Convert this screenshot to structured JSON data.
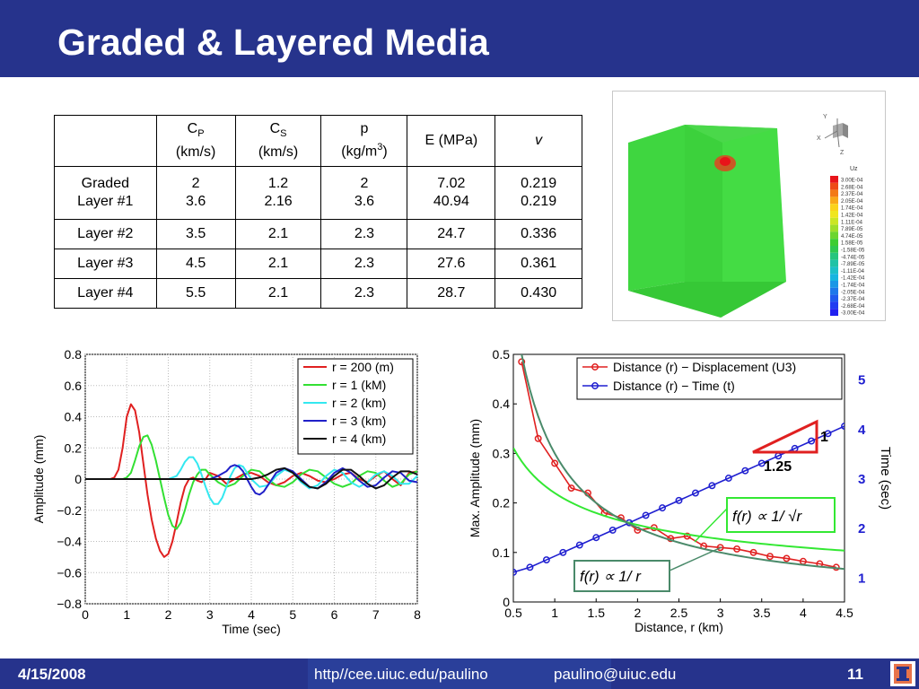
{
  "slide": {
    "title": "Graded & Layered Media",
    "footer": {
      "date": "4/15/2008",
      "url": "http//cee.uiuc.edu/paulino",
      "email": "paulino@uiuc.edu",
      "page": "11"
    },
    "colors": {
      "title_bar": "#26338c",
      "footer": "#26338c",
      "accent": "#1f1fd0"
    }
  },
  "table": {
    "headers": [
      {
        "main": "C",
        "sub": "P",
        "unit": "(km/s)"
      },
      {
        "main": "C",
        "sub": "S",
        "unit": "(km/s)"
      },
      {
        "main": "p",
        "unit_pre": "(kg/m",
        "sup": "3",
        "unit_post": ")"
      },
      {
        "main": "E (MPa)"
      },
      {
        "main": "v"
      }
    ],
    "rows": [
      {
        "label": [
          "Graded",
          "Layer #1"
        ],
        "cells": [
          [
            "2",
            "3.6"
          ],
          [
            "1.2",
            "2.16"
          ],
          [
            "2",
            "3.6"
          ],
          [
            "7.02",
            "40.94"
          ],
          [
            "0.219",
            "0.219"
          ]
        ]
      },
      {
        "label": [
          "Layer #2"
        ],
        "cells": [
          [
            "3.5"
          ],
          [
            "2.1"
          ],
          [
            "2.3"
          ],
          [
            "24.7"
          ],
          [
            "0.336"
          ]
        ]
      },
      {
        "label": [
          "Layer #3"
        ],
        "cells": [
          [
            "4.5"
          ],
          [
            "2.1"
          ],
          [
            "2.3"
          ],
          [
            "27.6"
          ],
          [
            "0.361"
          ]
        ]
      },
      {
        "label": [
          "Layer #4"
        ],
        "cells": [
          [
            "5.5"
          ],
          [
            "2.1"
          ],
          [
            "2.3"
          ],
          [
            "28.7"
          ],
          [
            "0.430"
          ]
        ]
      }
    ]
  },
  "simulation": {
    "triad": {
      "y": "Y",
      "x": "X",
      "z": "Z"
    },
    "legend_title": "Uz",
    "legend_values": [
      "3.00E-04",
      "2.68E-04",
      "2.37E-04",
      "2.05E-04",
      "1.74E-04",
      "1.42E-04",
      "1.11E-04",
      "7.89E-05",
      "4.74E-05",
      "1.58E-05",
      "-1.58E-05",
      "-4.74E-05",
      "-7.89E-05",
      "-1.11E-04",
      "-1.42E-04",
      "-1.74E-04",
      "-2.05E-04",
      "-2.37E-04",
      "-2.68E-04",
      "-3.00E-04"
    ],
    "legend_colors": [
      "#e8141a",
      "#ee4a17",
      "#f37a16",
      "#f9a918",
      "#fbd31b",
      "#f0e61e",
      "#cbe624",
      "#9fde2a",
      "#6cd52f",
      "#3ccd32",
      "#2ec850",
      "#26c57e",
      "#20c2a6",
      "#1cbfc8",
      "#17b5e0",
      "#1a97e6",
      "#1d78ea",
      "#1f5aee",
      "#213cf1",
      "#2020f0"
    ]
  },
  "chart_data": [
    {
      "type": "line",
      "title": "",
      "xlabel": "Time (sec)",
      "ylabel": "Amplitude (mm)",
      "xlim": [
        0,
        8
      ],
      "ylim": [
        -0.8,
        0.8
      ],
      "xticks": [
        "0",
        "1",
        "2",
        "3",
        "4",
        "5",
        "6",
        "7",
        "8"
      ],
      "yticks": [
        "0.8",
        "0.6",
        "0.4",
        "0.2",
        "0",
        "−0.2",
        "−0.4",
        "−0.6",
        "−0.8"
      ],
      "grid": true,
      "legend_position": "top-right",
      "series": [
        {
          "name": "r = 200 (m)",
          "color": "#e02020",
          "x": [
            0,
            0.4,
            0.6,
            0.7,
            0.8,
            0.9,
            1.0,
            1.1,
            1.2,
            1.3,
            1.4,
            1.5,
            1.6,
            1.7,
            1.8,
            1.9,
            2.0,
            2.1,
            2.2,
            2.3,
            2.4,
            2.5,
            2.6,
            2.7,
            2.8,
            2.9,
            3.0,
            3.2,
            3.4,
            3.6,
            3.8,
            4.0,
            4.2,
            4.4,
            4.6,
            4.8,
            5.0,
            5.2,
            5.4,
            5.6,
            5.8,
            6.0,
            6.2,
            6.4,
            6.6,
            6.8,
            7.0,
            7.2,
            7.4,
            7.6,
            7.8,
            8.0
          ],
          "y": [
            0,
            0,
            0,
            0.01,
            0.06,
            0.2,
            0.4,
            0.48,
            0.44,
            0.3,
            0.1,
            -0.1,
            -0.26,
            -0.38,
            -0.46,
            -0.5,
            -0.48,
            -0.4,
            -0.28,
            -0.15,
            -0.05,
            0.0,
            0.01,
            -0.01,
            -0.02,
            0.0,
            0.04,
            0.02,
            -0.03,
            0.0,
            0.03,
            0.04,
            0.02,
            -0.02,
            -0.04,
            -0.02,
            0.02,
            0.04,
            0.02,
            -0.01,
            -0.02,
            0.0,
            0.03,
            0.04,
            0.0,
            -0.02,
            0.02,
            0.05,
            0.0,
            -0.04,
            0.04,
            0.05
          ]
        },
        {
          "name": "r = 1 (kM)",
          "color": "#33e033",
          "x": [
            0,
            0.9,
            1.0,
            1.1,
            1.2,
            1.3,
            1.4,
            1.5,
            1.6,
            1.7,
            1.8,
            1.9,
            2.0,
            2.1,
            2.2,
            2.3,
            2.4,
            2.5,
            2.6,
            2.7,
            2.8,
            2.9,
            3.0,
            3.2,
            3.4,
            3.6,
            3.8,
            4.0,
            4.2,
            4.4,
            4.6,
            4.8,
            5.0,
            5.2,
            5.4,
            5.6,
            5.8,
            6.0,
            6.2,
            6.4,
            6.6,
            6.8,
            7.0,
            7.2,
            7.4,
            7.6,
            7.8,
            8.0
          ],
          "y": [
            0,
            0,
            0.01,
            0.04,
            0.12,
            0.21,
            0.27,
            0.28,
            0.22,
            0.12,
            0.0,
            -0.12,
            -0.23,
            -0.3,
            -0.32,
            -0.28,
            -0.2,
            -0.1,
            -0.02,
            0.03,
            0.06,
            0.06,
            0.03,
            -0.02,
            -0.05,
            -0.03,
            0.02,
            0.06,
            0.05,
            0.0,
            -0.04,
            -0.05,
            -0.02,
            0.03,
            0.06,
            0.05,
            0.01,
            -0.03,
            -0.05,
            -0.03,
            0.02,
            0.05,
            0.04,
            -0.01,
            -0.05,
            -0.03,
            0.03,
            0.05
          ]
        },
        {
          "name": "r = 2 (km)",
          "color": "#33e8f0",
          "x": [
            0,
            2.0,
            2.2,
            2.3,
            2.4,
            2.5,
            2.6,
            2.7,
            2.8,
            2.9,
            3.0,
            3.1,
            3.2,
            3.3,
            3.4,
            3.5,
            3.6,
            3.7,
            3.8,
            3.9,
            4.0,
            4.2,
            4.4,
            4.6,
            4.8,
            5.0,
            5.2,
            5.4,
            5.6,
            5.8,
            6.0,
            6.2,
            6.4,
            6.6,
            6.8,
            7.0,
            7.2,
            7.4,
            7.6,
            7.8,
            8.0
          ],
          "y": [
            0,
            0,
            0.02,
            0.06,
            0.11,
            0.14,
            0.14,
            0.1,
            0.03,
            -0.05,
            -0.12,
            -0.16,
            -0.16,
            -0.12,
            -0.05,
            0.02,
            0.07,
            0.09,
            0.08,
            0.04,
            0.0,
            -0.05,
            -0.04,
            0.02,
            0.06,
            0.04,
            -0.02,
            -0.06,
            -0.04,
            0.02,
            0.06,
            0.04,
            -0.02,
            -0.05,
            -0.02,
            0.03,
            0.05,
            0.02,
            -0.03,
            -0.03,
            0.02
          ]
        },
        {
          "name": "r = 3 (km)",
          "color": "#2020c8",
          "x": [
            0,
            3.0,
            3.2,
            3.4,
            3.5,
            3.6,
            3.7,
            3.8,
            3.9,
            4.0,
            4.1,
            4.2,
            4.3,
            4.4,
            4.5,
            4.6,
            4.8,
            5.0,
            5.2,
            5.4,
            5.6,
            5.8,
            6.0,
            6.2,
            6.4,
            6.6,
            6.8,
            7.0,
            7.2,
            7.4,
            7.6,
            7.8,
            8.0
          ],
          "y": [
            0,
            0,
            0.02,
            0.05,
            0.08,
            0.09,
            0.08,
            0.05,
            0.0,
            -0.05,
            -0.09,
            -0.1,
            -0.08,
            -0.04,
            0.0,
            0.04,
            0.07,
            0.05,
            0.0,
            -0.05,
            -0.06,
            -0.02,
            0.04,
            0.07,
            0.04,
            -0.01,
            -0.05,
            -0.04,
            0.01,
            0.05,
            0.04,
            -0.01,
            -0.02
          ]
        },
        {
          "name": "r = 4 (km)",
          "color": "#111111",
          "x": [
            0,
            4.0,
            4.2,
            4.4,
            4.6,
            4.8,
            5.0,
            5.2,
            5.4,
            5.6,
            5.8,
            6.0,
            6.2,
            6.4,
            6.6,
            6.8,
            7.0,
            7.2,
            7.4,
            7.6,
            7.8,
            8.0
          ],
          "y": [
            0,
            0,
            0.01,
            0.03,
            0.06,
            0.07,
            0.04,
            -0.01,
            -0.05,
            -0.06,
            -0.03,
            0.02,
            0.06,
            0.06,
            0.02,
            -0.03,
            -0.06,
            -0.04,
            0.01,
            0.05,
            0.05,
            0.03
          ]
        }
      ]
    },
    {
      "type": "line",
      "title": "",
      "xlabel": "Distance, r (km)",
      "ylabel": "Max. Amplitude (mm)",
      "y2label": "Time (sec)",
      "xlim": [
        0.5,
        4.5
      ],
      "ylim": [
        0,
        0.5
      ],
      "y2lim": [
        0.5,
        5.5
      ],
      "xticks": [
        "0.5",
        "1",
        "1.5",
        "2",
        "2.5",
        "3",
        "3.5",
        "4",
        "4.5"
      ],
      "yticks": [
        "0.5",
        "0.4",
        "0.3",
        "0.2",
        "0.1",
        "0"
      ],
      "y2ticks": [
        "5",
        "4",
        "3",
        "2",
        "1"
      ],
      "grid": false,
      "legend_position": "top-right",
      "series": [
        {
          "name": "Distance (r) − Displacement (U3)",
          "color": "#e02020",
          "axis": "left",
          "marker": "circle",
          "x": [
            0.6,
            0.8,
            1.0,
            1.2,
            1.4,
            1.6,
            1.8,
            2.0,
            2.2,
            2.4,
            2.6,
            2.8,
            3.0,
            3.2,
            3.4,
            3.6,
            3.8,
            4.0,
            4.2,
            4.4
          ],
          "y": [
            0.485,
            0.33,
            0.28,
            0.23,
            0.22,
            0.18,
            0.17,
            0.145,
            0.15,
            0.128,
            0.133,
            0.113,
            0.11,
            0.107,
            0.1,
            0.092,
            0.088,
            0.082,
            0.077,
            0.07
          ]
        },
        {
          "name": "Distance (r) − Time (t)",
          "color": "#1f1fd0",
          "axis": "right",
          "marker": "circle",
          "x": [
            0.5,
            0.7,
            0.9,
            1.1,
            1.3,
            1.5,
            1.7,
            1.9,
            2.1,
            2.3,
            2.5,
            2.7,
            2.9,
            3.1,
            3.3,
            3.5,
            3.7,
            3.9,
            4.1,
            4.3,
            4.5
          ],
          "y": [
            1.1,
            1.2,
            1.35,
            1.5,
            1.65,
            1.8,
            1.95,
            2.1,
            2.25,
            2.4,
            2.55,
            2.7,
            2.85,
            3.0,
            3.15,
            3.3,
            3.45,
            3.6,
            3.75,
            3.9,
            4.05
          ]
        },
        {
          "color": "#33e833",
          "axis": "left",
          "fit": "1/sqrt(r)",
          "a": 0.22
        },
        {
          "color": "#4a8a6a",
          "axis": "left",
          "fit": "1/r",
          "a": 0.3
        }
      ],
      "annotations": {
        "slope_rise": "1",
        "slope_run": "1.25",
        "fit_sqrt": "f(r) ∝ 1/ √r",
        "fit_inv": "f(r) ∝ 1/ r"
      }
    }
  ]
}
